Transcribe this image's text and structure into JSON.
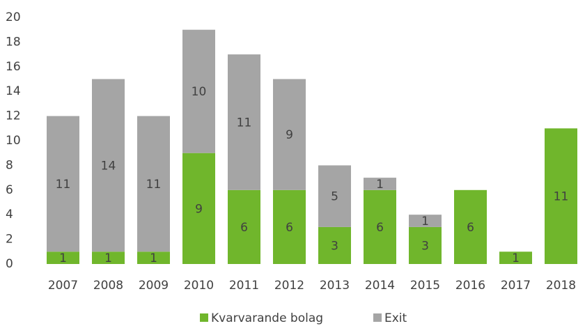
{
  "chart_data": {
    "type": "stacked_bar",
    "categories": [
      "2007",
      "2008",
      "2009",
      "2010",
      "2011",
      "2012",
      "2013",
      "2014",
      "2015",
      "2016",
      "2017",
      "2018"
    ],
    "series": [
      {
        "name": "Kvarvarande bolag",
        "color": "#70b62c",
        "values": [
          1,
          1,
          1,
          9,
          6,
          6,
          3,
          6,
          3,
          6,
          1,
          11
        ]
      },
      {
        "name": "Exit",
        "color": "#a5a5a5",
        "values": [
          11,
          14,
          11,
          10,
          11,
          9,
          5,
          1,
          1,
          null,
          null,
          null
        ]
      }
    ],
    "ylim": [
      0,
      20
    ],
    "yticks": [
      0,
      2,
      4,
      6,
      8,
      10,
      12,
      14,
      16,
      18,
      20
    ],
    "legend": "bottom"
  }
}
